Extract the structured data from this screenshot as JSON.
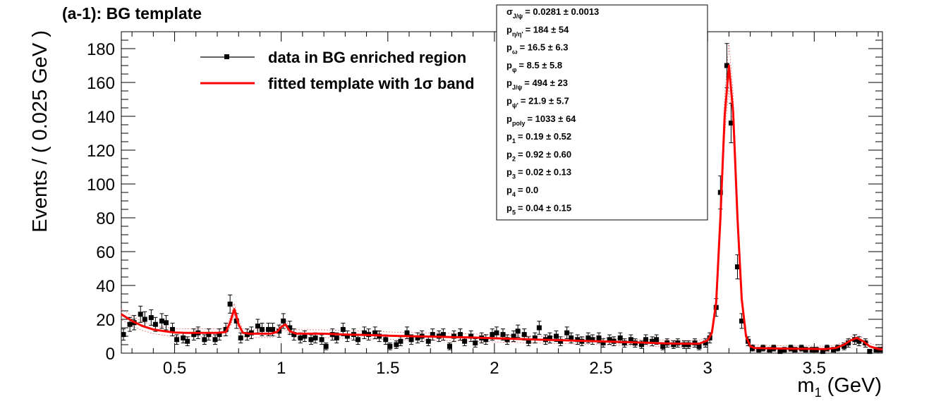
{
  "chart_data": {
    "type": "scatter",
    "title": "(a-1): BG template",
    "xlabel": "m",
    "xlabel_sub": "1",
    "xlabel_unit": " (GeV)",
    "ylabel": "Events / ( 0.025 GeV )",
    "xlim": [
      0.25,
      3.82
    ],
    "ylim": [
      0,
      190
    ],
    "x_ticks": [
      0.5,
      1,
      1.5,
      2,
      2.5,
      3,
      3.5
    ],
    "x_tick_labels": [
      "0.5",
      "1",
      "1.5",
      "2",
      "2.5",
      "3",
      "3.5"
    ],
    "y_ticks": [
      0,
      20,
      40,
      60,
      80,
      100,
      120,
      140,
      160,
      180
    ],
    "y_tick_labels": [
      "0",
      "20",
      "40",
      "60",
      "80",
      "100",
      "120",
      "140",
      "160",
      "180"
    ],
    "legend": {
      "placement": "top-left",
      "entries": [
        {
          "label": "data in BG enriched region",
          "style": "marker-line",
          "color": "#000000"
        },
        {
          "label": "fitted template with 1σ band",
          "style": "line",
          "color": "#ff0000"
        }
      ]
    },
    "stats_box": {
      "placement": "top-center",
      "entries": [
        {
          "sym": "σ",
          "sub": "J/ψ",
          "value": "=  0.0281 ± 0.0013"
        },
        {
          "sym": "p",
          "sub": "η/η'",
          "value": "=  184 ± 54"
        },
        {
          "sym": "p",
          "sub": "ω",
          "value": "=  16.5 ± 6.3"
        },
        {
          "sym": "p",
          "sub": "φ",
          "value": "=  8.5 ± 5.8"
        },
        {
          "sym": "p",
          "sub": "J/ψ",
          "value": "=  494 ± 23"
        },
        {
          "sym": "p",
          "sub": "ψ'",
          "value": "=  21.9 ± 5.7"
        },
        {
          "sym": "p",
          "sub": "poly",
          "value": "=  1033 ± 64"
        },
        {
          "sym": "p",
          "sub": "1",
          "value": "=  0.19 ± 0.52"
        },
        {
          "sym": "p",
          "sub": "2",
          "value": "=  0.92 ± 0.60"
        },
        {
          "sym": "p",
          "sub": "3",
          "value": "=  0.02 ± 0.13"
        },
        {
          "sym": "p",
          "sub": "4",
          "value": "=  0.0"
        },
        {
          "sym": "p",
          "sub": "5",
          "value": "=  0.04 ± 0.15"
        }
      ]
    },
    "series": [
      {
        "name": "data in BG enriched region",
        "kind": "points_with_errors",
        "color": "#000000",
        "points": [
          [
            0.26,
            11
          ],
          [
            0.29,
            17
          ],
          [
            0.31,
            18
          ],
          [
            0.34,
            23
          ],
          [
            0.36,
            20
          ],
          [
            0.39,
            21
          ],
          [
            0.41,
            17
          ],
          [
            0.44,
            19
          ],
          [
            0.46,
            18
          ],
          [
            0.49,
            14
          ],
          [
            0.51,
            8
          ],
          [
            0.54,
            9
          ],
          [
            0.56,
            7
          ],
          [
            0.59,
            11
          ],
          [
            0.61,
            12
          ],
          [
            0.64,
            8
          ],
          [
            0.66,
            11
          ],
          [
            0.69,
            8
          ],
          [
            0.71,
            11
          ],
          [
            0.74,
            14
          ],
          [
            0.76,
            29
          ],
          [
            0.79,
            19
          ],
          [
            0.81,
            9
          ],
          [
            0.84,
            11
          ],
          [
            0.86,
            12
          ],
          [
            0.89,
            16
          ],
          [
            0.91,
            14
          ],
          [
            0.94,
            14
          ],
          [
            0.96,
            14
          ],
          [
            0.99,
            13
          ],
          [
            1.01,
            19
          ],
          [
            1.04,
            15
          ],
          [
            1.06,
            11
          ],
          [
            1.09,
            9
          ],
          [
            1.11,
            10
          ],
          [
            1.14,
            8
          ],
          [
            1.16,
            9
          ],
          [
            1.19,
            8
          ],
          [
            1.21,
            4
          ],
          [
            1.24,
            11
          ],
          [
            1.26,
            9
          ],
          [
            1.29,
            14
          ],
          [
            1.31,
            10
          ],
          [
            1.34,
            11
          ],
          [
            1.36,
            8
          ],
          [
            1.39,
            12
          ],
          [
            1.41,
            11
          ],
          [
            1.44,
            12
          ],
          [
            1.46,
            10
          ],
          [
            1.49,
            8
          ],
          [
            1.51,
            4
          ],
          [
            1.54,
            5
          ],
          [
            1.56,
            7
          ],
          [
            1.59,
            12
          ],
          [
            1.61,
            8
          ],
          [
            1.64,
            9
          ],
          [
            1.66,
            10
          ],
          [
            1.69,
            7
          ],
          [
            1.71,
            11
          ],
          [
            1.74,
            10
          ],
          [
            1.76,
            11
          ],
          [
            1.79,
            4
          ],
          [
            1.81,
            10
          ],
          [
            1.84,
            11
          ],
          [
            1.86,
            7
          ],
          [
            1.89,
            10
          ],
          [
            1.91,
            6
          ],
          [
            1.94,
            9
          ],
          [
            1.96,
            8
          ],
          [
            1.99,
            11
          ],
          [
            2.01,
            12
          ],
          [
            2.04,
            11
          ],
          [
            2.06,
            8
          ],
          [
            2.09,
            10
          ],
          [
            2.11,
            13
          ],
          [
            2.14,
            11
          ],
          [
            2.16,
            7
          ],
          [
            2.19,
            9
          ],
          [
            2.21,
            15
          ],
          [
            2.24,
            8
          ],
          [
            2.26,
            9
          ],
          [
            2.29,
            10
          ],
          [
            2.31,
            7
          ],
          [
            2.34,
            12
          ],
          [
            2.36,
            9
          ],
          [
            2.39,
            8
          ],
          [
            2.41,
            7
          ],
          [
            2.44,
            9
          ],
          [
            2.46,
            8
          ],
          [
            2.49,
            9
          ],
          [
            2.51,
            6
          ],
          [
            2.54,
            8
          ],
          [
            2.56,
            7
          ],
          [
            2.59,
            9
          ],
          [
            2.61,
            6
          ],
          [
            2.64,
            8
          ],
          [
            2.66,
            6
          ],
          [
            2.69,
            5
          ],
          [
            2.71,
            8
          ],
          [
            2.74,
            7
          ],
          [
            2.76,
            8
          ],
          [
            2.79,
            4
          ],
          [
            2.81,
            6
          ],
          [
            2.84,
            5
          ],
          [
            2.86,
            6
          ],
          [
            2.89,
            5
          ],
          [
            2.91,
            5
          ],
          [
            2.94,
            6
          ],
          [
            2.96,
            4
          ],
          [
            2.99,
            6
          ],
          [
            3.01,
            9
          ],
          [
            3.04,
            27
          ],
          [
            3.06,
            95
          ],
          [
            3.09,
            170
          ],
          [
            3.11,
            136
          ],
          [
            3.14,
            51
          ],
          [
            3.16,
            19
          ],
          [
            3.19,
            7
          ],
          [
            3.21,
            3
          ],
          [
            3.24,
            2
          ],
          [
            3.26,
            3
          ],
          [
            3.29,
            2
          ],
          [
            3.31,
            3
          ],
          [
            3.34,
            1
          ],
          [
            3.36,
            2
          ],
          [
            3.39,
            3
          ],
          [
            3.41,
            2
          ],
          [
            3.44,
            3
          ],
          [
            3.46,
            2
          ],
          [
            3.49,
            2
          ],
          [
            3.51,
            2
          ],
          [
            3.54,
            1
          ],
          [
            3.56,
            3
          ],
          [
            3.59,
            2
          ],
          [
            3.61,
            3
          ],
          [
            3.64,
            4
          ],
          [
            3.66,
            6
          ],
          [
            3.69,
            8
          ],
          [
            3.71,
            7
          ],
          [
            3.74,
            6
          ],
          [
            3.76,
            1
          ],
          [
            3.79,
            2
          ],
          [
            3.81,
            2
          ]
        ]
      },
      {
        "name": "fitted template with 1σ band",
        "kind": "curve",
        "color": "#ff0000",
        "points": [
          [
            0.25,
            23
          ],
          [
            0.3,
            19
          ],
          [
            0.35,
            16
          ],
          [
            0.4,
            14
          ],
          [
            0.45,
            13
          ],
          [
            0.5,
            12.2
          ],
          [
            0.55,
            12
          ],
          [
            0.6,
            12
          ],
          [
            0.65,
            12
          ],
          [
            0.7,
            12
          ],
          [
            0.74,
            12.5
          ],
          [
            0.76,
            18
          ],
          [
            0.78,
            26
          ],
          [
            0.8,
            17
          ],
          [
            0.82,
            12
          ],
          [
            0.85,
            11.5
          ],
          [
            0.9,
            11.5
          ],
          [
            0.95,
            11.5
          ],
          [
            0.98,
            12.5
          ],
          [
            1.0,
            15.5
          ],
          [
            1.02,
            17
          ],
          [
            1.04,
            13
          ],
          [
            1.07,
            11.5
          ],
          [
            1.1,
            11.5
          ],
          [
            1.2,
            11.5
          ],
          [
            1.3,
            11
          ],
          [
            1.4,
            10.7
          ],
          [
            1.5,
            10.3
          ],
          [
            1.6,
            10
          ],
          [
            1.7,
            9.8
          ],
          [
            1.8,
            9.5
          ],
          [
            1.9,
            9.2
          ],
          [
            2.0,
            8.8
          ],
          [
            2.1,
            8.4
          ],
          [
            2.2,
            8
          ],
          [
            2.3,
            7.7
          ],
          [
            2.4,
            7.3
          ],
          [
            2.5,
            7
          ],
          [
            2.6,
            6.6
          ],
          [
            2.7,
            6.2
          ],
          [
            2.8,
            5.8
          ],
          [
            2.9,
            5.5
          ],
          [
            2.96,
            5.6
          ],
          [
            3.0,
            7.5
          ],
          [
            3.02,
            12
          ],
          [
            3.04,
            30
          ],
          [
            3.06,
            80
          ],
          [
            3.08,
            140
          ],
          [
            3.1,
            170
          ],
          [
            3.12,
            142
          ],
          [
            3.14,
            80
          ],
          [
            3.16,
            32
          ],
          [
            3.18,
            10
          ],
          [
            3.2,
            4
          ],
          [
            3.22,
            3
          ],
          [
            3.3,
            2.8
          ],
          [
            3.4,
            2.6
          ],
          [
            3.5,
            2.5
          ],
          [
            3.55,
            2.4
          ],
          [
            3.6,
            3
          ],
          [
            3.64,
            5
          ],
          [
            3.67,
            7.5
          ],
          [
            3.7,
            9
          ],
          [
            3.73,
            7
          ],
          [
            3.76,
            4
          ],
          [
            3.8,
            2.5
          ],
          [
            3.82,
            2.3
          ]
        ]
      }
    ]
  }
}
